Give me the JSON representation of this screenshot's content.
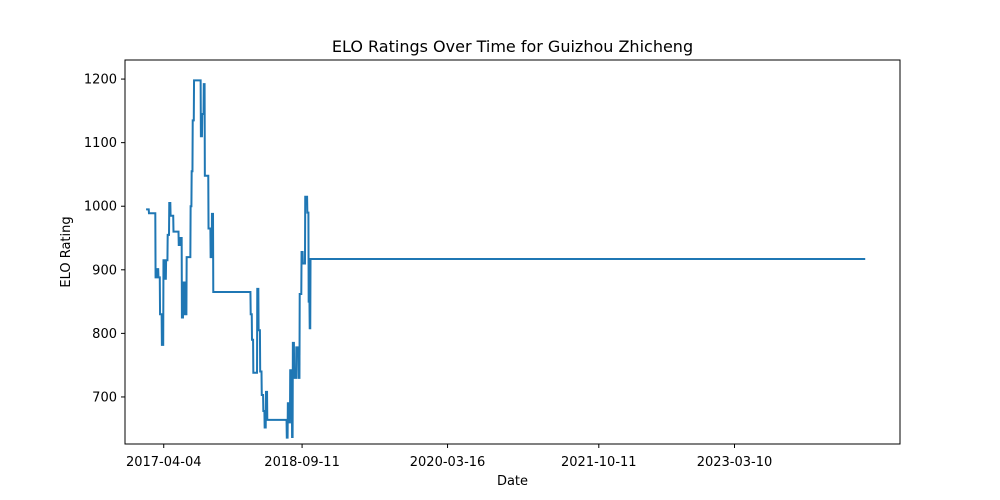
{
  "chart_data": {
    "type": "line",
    "title": "ELO Ratings Over Time for Guizhou Zhicheng",
    "xlabel": "Date",
    "ylabel": "ELO Rating",
    "x_ticks": [
      "2017-04-04",
      "2018-09-11",
      "2020-03-16",
      "2021-10-11",
      "2023-03-10"
    ],
    "y_ticks": [
      700,
      800,
      900,
      1000,
      1100,
      1200
    ],
    "ylim": [
      626,
      1230
    ],
    "xlim": [
      "2016-11-08",
      "2024-11-27"
    ],
    "grid": false,
    "line_color": "#1f77b4",
    "series": [
      {
        "points": [
          [
            "2017-01-27",
            995
          ],
          [
            "2017-02-06",
            995
          ],
          [
            "2017-02-07",
            989
          ],
          [
            "2017-03-03",
            989
          ],
          [
            "2017-03-04",
            888
          ],
          [
            "2017-03-09",
            888
          ],
          [
            "2017-03-10",
            901
          ],
          [
            "2017-03-14",
            901
          ],
          [
            "2017-03-15",
            888
          ],
          [
            "2017-03-20",
            888
          ],
          [
            "2017-03-21",
            830
          ],
          [
            "2017-03-27",
            830
          ],
          [
            "2017-03-28",
            782
          ],
          [
            "2017-04-02",
            782
          ],
          [
            "2017-04-03",
            915
          ],
          [
            "2017-04-07",
            915
          ],
          [
            "2017-04-08",
            886
          ],
          [
            "2017-04-12",
            886
          ],
          [
            "2017-04-13",
            915
          ],
          [
            "2017-04-18",
            915
          ],
          [
            "2017-04-19",
            955
          ],
          [
            "2017-04-24",
            955
          ],
          [
            "2017-04-25",
            1005
          ],
          [
            "2017-04-29",
            1005
          ],
          [
            "2017-04-30",
            985
          ],
          [
            "2017-05-10",
            985
          ],
          [
            "2017-05-11",
            960
          ],
          [
            "2017-05-30",
            960
          ],
          [
            "2017-05-31",
            939
          ],
          [
            "2017-06-04",
            939
          ],
          [
            "2017-06-05",
            950
          ],
          [
            "2017-06-11",
            950
          ],
          [
            "2017-06-12",
            825
          ],
          [
            "2017-06-16",
            825
          ],
          [
            "2017-06-17",
            880
          ],
          [
            "2017-06-22",
            880
          ],
          [
            "2017-06-23",
            830
          ],
          [
            "2017-06-29",
            830
          ],
          [
            "2017-06-30",
            920
          ],
          [
            "2017-07-14",
            920
          ],
          [
            "2017-07-15",
            1000
          ],
          [
            "2017-07-18",
            1000
          ],
          [
            "2017-07-19",
            1055
          ],
          [
            "2017-07-22",
            1055
          ],
          [
            "2017-07-23",
            1135
          ],
          [
            "2017-07-27",
            1135
          ],
          [
            "2017-07-28",
            1198
          ],
          [
            "2017-08-22",
            1198
          ],
          [
            "2017-08-23",
            1110
          ],
          [
            "2017-08-27",
            1110
          ],
          [
            "2017-08-28",
            1145
          ],
          [
            "2017-09-02",
            1145
          ],
          [
            "2017-09-03",
            1192
          ],
          [
            "2017-09-06",
            1192
          ],
          [
            "2017-09-07",
            1048
          ],
          [
            "2017-09-20",
            1048
          ],
          [
            "2017-09-21",
            965
          ],
          [
            "2017-09-28",
            965
          ],
          [
            "2017-09-29",
            920
          ],
          [
            "2017-10-03",
            920
          ],
          [
            "2017-10-04",
            988
          ],
          [
            "2017-10-08",
            988
          ],
          [
            "2017-10-09",
            865
          ],
          [
            "2018-02-27",
            865
          ],
          [
            "2018-02-28",
            830
          ],
          [
            "2018-03-04",
            830
          ],
          [
            "2018-03-05",
            790
          ],
          [
            "2018-03-09",
            790
          ],
          [
            "2018-03-10",
            738
          ],
          [
            "2018-03-24",
            738
          ],
          [
            "2018-03-25",
            870
          ],
          [
            "2018-03-29",
            870
          ],
          [
            "2018-03-30",
            805
          ],
          [
            "2018-04-04",
            805
          ],
          [
            "2018-04-05",
            740
          ],
          [
            "2018-04-10",
            740
          ],
          [
            "2018-04-11",
            703
          ],
          [
            "2018-04-16",
            703
          ],
          [
            "2018-04-17",
            678
          ],
          [
            "2018-04-21",
            678
          ],
          [
            "2018-04-22",
            652
          ],
          [
            "2018-04-26",
            652
          ],
          [
            "2018-04-27",
            708
          ],
          [
            "2018-05-01",
            708
          ],
          [
            "2018-05-02",
            664
          ],
          [
            "2018-07-14",
            664
          ],
          [
            "2018-07-15",
            636
          ],
          [
            "2018-07-18",
            636
          ],
          [
            "2018-07-19",
            690
          ],
          [
            "2018-07-23",
            690
          ],
          [
            "2018-07-24",
            660
          ],
          [
            "2018-07-27",
            660
          ],
          [
            "2018-07-28",
            742
          ],
          [
            "2018-07-31",
            742
          ],
          [
            "2018-08-01",
            722
          ],
          [
            "2018-08-03",
            722
          ],
          [
            "2018-08-04",
            637
          ],
          [
            "2018-08-06",
            637
          ],
          [
            "2018-08-07",
            785
          ],
          [
            "2018-08-11",
            785
          ],
          [
            "2018-08-12",
            730
          ],
          [
            "2018-08-19",
            730
          ],
          [
            "2018-08-20",
            778
          ],
          [
            "2018-08-27",
            778
          ],
          [
            "2018-08-28",
            730
          ],
          [
            "2018-09-01",
            730
          ],
          [
            "2018-09-02",
            862
          ],
          [
            "2018-09-08",
            862
          ],
          [
            "2018-09-09",
            928
          ],
          [
            "2018-09-13",
            928
          ],
          [
            "2018-09-14",
            910
          ],
          [
            "2018-09-22",
            910
          ],
          [
            "2018-09-23",
            1015
          ],
          [
            "2018-09-30",
            1015
          ],
          [
            "2018-10-01",
            990
          ],
          [
            "2018-10-05",
            990
          ],
          [
            "2018-10-06",
            850
          ],
          [
            "2018-10-09",
            850
          ],
          [
            "2018-10-10",
            808
          ],
          [
            "2018-10-12",
            808
          ],
          [
            "2018-10-13",
            917
          ],
          [
            "2024-07-18",
            917
          ]
        ]
      }
    ]
  }
}
